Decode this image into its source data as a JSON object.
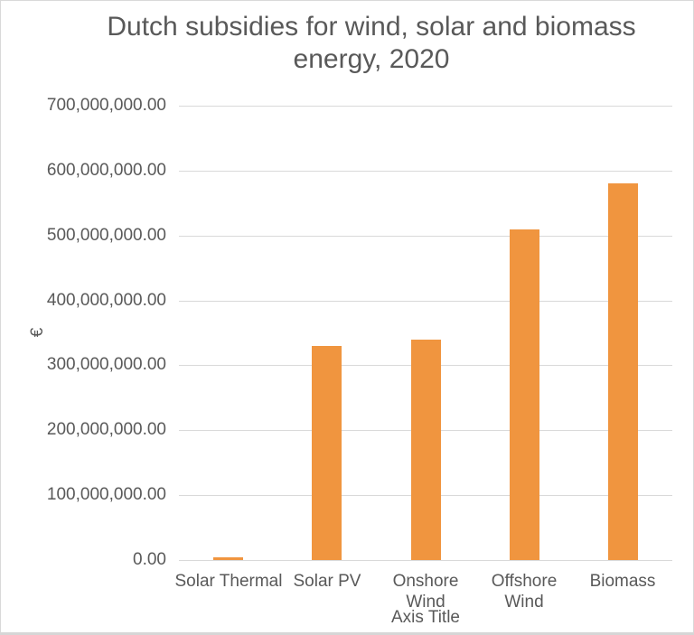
{
  "chart_data": {
    "type": "bar",
    "title": "Dutch subsidies for wind, solar and biomass energy, 2020",
    "title_lines": [
      "Dutch subsidies for wind, solar and biomass",
      "energy, 2020"
    ],
    "categories": [
      "Solar Thermal",
      "Solar PV",
      "Onshore Wind",
      "Offshore Wind",
      "Biomass"
    ],
    "category_label_lines": [
      [
        "Solar Thermal"
      ],
      [
        "Solar PV"
      ],
      [
        "Onshore",
        "Wind"
      ],
      [
        "Offshore",
        "Wind"
      ],
      [
        "Biomass"
      ]
    ],
    "values": [
      4000000,
      330000000,
      340000000,
      510000000,
      580000000
    ],
    "xlabel": "Axis Title",
    "ylabel": "€",
    "ylim": [
      0,
      700000000
    ],
    "ytick_step": 100000000,
    "ytick_labels": [
      "0.00",
      "100,000,000.00",
      "200,000,000.00",
      "300,000,000.00",
      "400,000,000.00",
      "500,000,000.00",
      "600,000,000.00",
      "700,000,000.00"
    ],
    "grid": true,
    "legend": "none",
    "bar_color": "#F0953F",
    "text_color": "#595959",
    "gridline_color": "#D9D9D9"
  }
}
